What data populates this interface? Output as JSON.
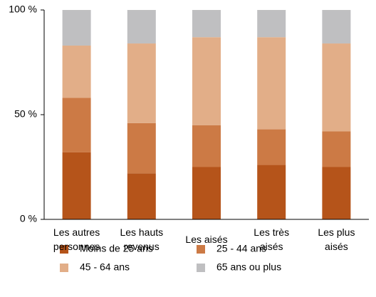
{
  "chart_data": {
    "type": "stacked_bar",
    "categories": [
      "Les autres personnes",
      "Les hauts revenus",
      "Les aisés",
      "Les très aisés",
      "Les plus aisés"
    ],
    "series": [
      {
        "name": "Moins de 25 ans",
        "color": "#b5541a",
        "values": [
          32,
          22,
          25,
          26,
          25
        ]
      },
      {
        "name": "25 - 44 ans",
        "color": "#cc7a45",
        "values": [
          26,
          24,
          20,
          17,
          17
        ]
      },
      {
        "name": "45 - 64 ans",
        "color": "#e2ae88",
        "values": [
          25,
          38,
          42,
          44,
          42
        ]
      },
      {
        "name": "65 ans ou plus",
        "color": "#bfbfc1",
        "values": [
          17,
          16,
          13,
          13,
          16
        ]
      }
    ],
    "ylim": [
      0,
      100
    ],
    "yticks": [
      {
        "value": 0,
        "label": "0 %"
      },
      {
        "value": 50,
        "label": "50 %"
      },
      {
        "value": 100,
        "label": "100 %"
      }
    ],
    "legend": "bottom"
  }
}
